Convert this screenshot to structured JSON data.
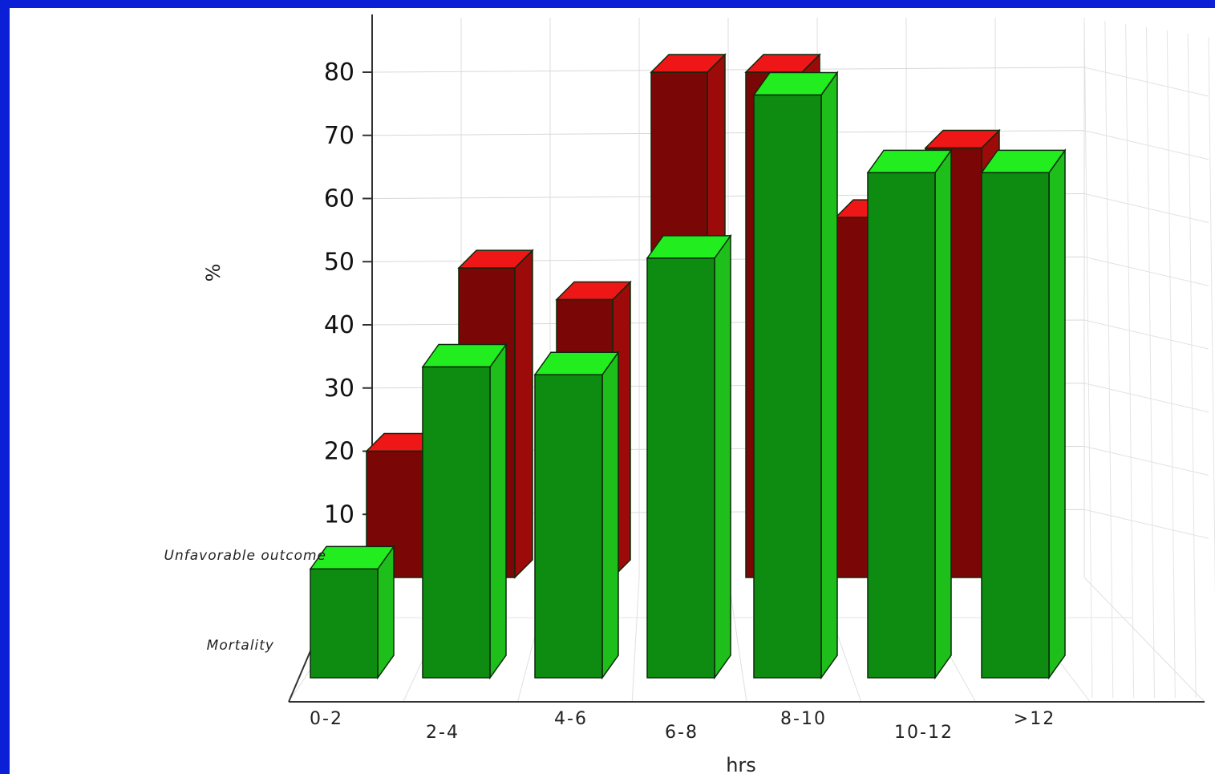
{
  "chart_data": {
    "type": "bar",
    "categories": [
      "0-2",
      "2-4",
      "4-6",
      "6-8",
      "8-10",
      "10-12",
      ">12"
    ],
    "series": [
      {
        "name": "Mortality",
        "values": [
          14,
          40,
          39,
          54,
          75,
          65,
          65
        ]
      },
      {
        "name": "Unfavorable outcome",
        "values": [
          20,
          49,
          44,
          80,
          80,
          57,
          68
        ]
      }
    ],
    "title": "",
    "xlabel": "hrs",
    "ylabel": "%",
    "ylim": [
      0,
      80
    ],
    "yticks": [
      10,
      20,
      30,
      40,
      50,
      60,
      70,
      80
    ],
    "grid": true,
    "legend": "none",
    "colors": {
      "Mortality": {
        "front": "#0e8c12",
        "side": "#1fbf1b",
        "top": "#22ee1f"
      },
      "Unfavorable outcome": {
        "front": "#7a0606",
        "side": "#9c0a0a",
        "top": "#ee1616"
      },
      "background": "#0a1fd6"
    }
  }
}
